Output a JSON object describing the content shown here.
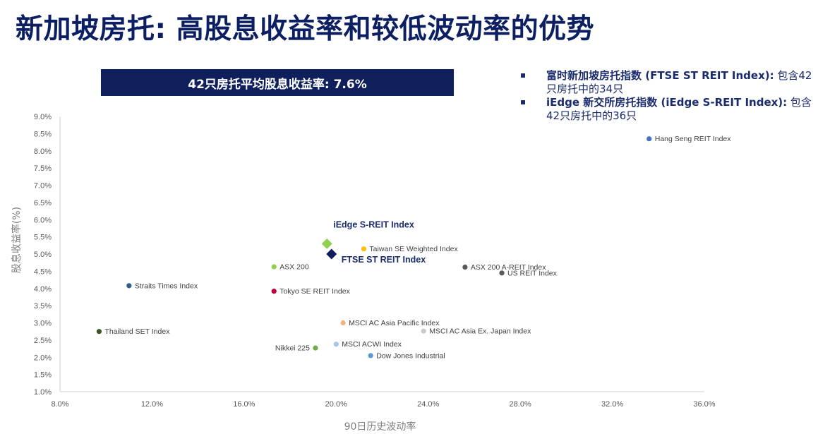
{
  "title": "新加坡房托: 高股息收益率和较低波动率的优势",
  "banner": "42只房托平均股息收益率: 7.6%",
  "notes": [
    {
      "bold": "富时新加坡房托指数 (FTSE ST REIT Index):",
      "rest": " 包含42只房托中的34只"
    },
    {
      "bold": "iEdge 新交所房托指数 (iEdge S-REIT Index):",
      "rest": " 包含42只房托中的36只"
    }
  ],
  "chart_data": {
    "type": "scatter",
    "xlabel": "90日历史波动率",
    "ylabel": "股息收益率(%)",
    "xlim": [
      8.0,
      36.0
    ],
    "ylim": [
      1.0,
      9.0
    ],
    "x_ticks": [
      8,
      12,
      16,
      20,
      24,
      28,
      32,
      36
    ],
    "x_tick_labels": [
      "8.0%",
      "12.0%",
      "16.0%",
      "20.0%",
      "24.0%",
      "28.0%",
      "32.0%",
      "36.0%"
    ],
    "y_ticks": [
      1.0,
      1.5,
      2.0,
      2.5,
      3.0,
      3.5,
      4.0,
      4.5,
      5.0,
      5.5,
      6.0,
      6.5,
      7.0,
      7.5,
      8.0,
      8.5,
      9.0
    ],
    "y_tick_labels": [
      "1.0%",
      "1.5%",
      "2.0%",
      "2.5%",
      "3.0%",
      "3.5%",
      "4.0%",
      "4.5%",
      "5.0%",
      "5.5%",
      "6.0%",
      "6.5%",
      "7.0%",
      "7.5%",
      "8.0%",
      "8.5%",
      "9.0%"
    ],
    "grid": false,
    "points": [
      {
        "label": "Hang Seng REIT Index",
        "x": 33.6,
        "y": 8.35,
        "color": "#4472c4",
        "shape": "circle",
        "label_pos": "right"
      },
      {
        "label": "iEdge S-REIT Index",
        "x": 19.6,
        "y": 5.3,
        "color": "#92d050",
        "shape": "diamond",
        "label_pos": "above",
        "emphasis": true
      },
      {
        "label": "FTSE ST REIT Index",
        "x": 19.8,
        "y": 5.0,
        "color": "#0f1f5c",
        "shape": "diamond",
        "label_pos": "below-right",
        "emphasis": true
      },
      {
        "label": "Taiwan SE Weighted Index",
        "x": 21.2,
        "y": 5.15,
        "color": "#ffc000",
        "shape": "circle",
        "label_pos": "right"
      },
      {
        "label": "ASX 200 A-REIT Index",
        "x": 25.6,
        "y": 4.62,
        "color": "#595959",
        "shape": "circle",
        "label_pos": "right"
      },
      {
        "label": "US REIT Index",
        "x": 27.2,
        "y": 4.45,
        "color": "#595959",
        "shape": "circle",
        "label_pos": "right"
      },
      {
        "label": "ASX 200",
        "x": 17.3,
        "y": 4.63,
        "color": "#92d050",
        "shape": "circle",
        "label_pos": "right"
      },
      {
        "label": "Straits Times Index",
        "x": 11.0,
        "y": 4.08,
        "color": "#2e5d8c",
        "shape": "circle",
        "label_pos": "right"
      },
      {
        "label": "Tokyo SE REIT Index",
        "x": 17.3,
        "y": 3.92,
        "color": "#c00040",
        "shape": "circle",
        "label_pos": "right"
      },
      {
        "label": "MSCI AC Asia Pacific Index",
        "x": 20.3,
        "y": 3.0,
        "color": "#f4b183",
        "shape": "circle",
        "label_pos": "right"
      },
      {
        "label": "MSCI AC Asia Ex. Japan Index",
        "x": 23.8,
        "y": 2.76,
        "color": "#c9c9c9",
        "shape": "circle",
        "label_pos": "right"
      },
      {
        "label": "Thailand SET Index",
        "x": 9.7,
        "y": 2.75,
        "color": "#375623",
        "shape": "circle",
        "label_pos": "right"
      },
      {
        "label": "MSCI ACWI Index",
        "x": 20.0,
        "y": 2.38,
        "color": "#a9c4eb",
        "shape": "circle",
        "label_pos": "right"
      },
      {
        "label": "Nikkei 225",
        "x": 19.1,
        "y": 2.27,
        "color": "#70ad47",
        "shape": "circle",
        "label_pos": "left"
      },
      {
        "label": "Dow Jones Industrial",
        "x": 21.5,
        "y": 2.05,
        "color": "#5b9bd5",
        "shape": "circle",
        "label_pos": "right"
      }
    ]
  }
}
